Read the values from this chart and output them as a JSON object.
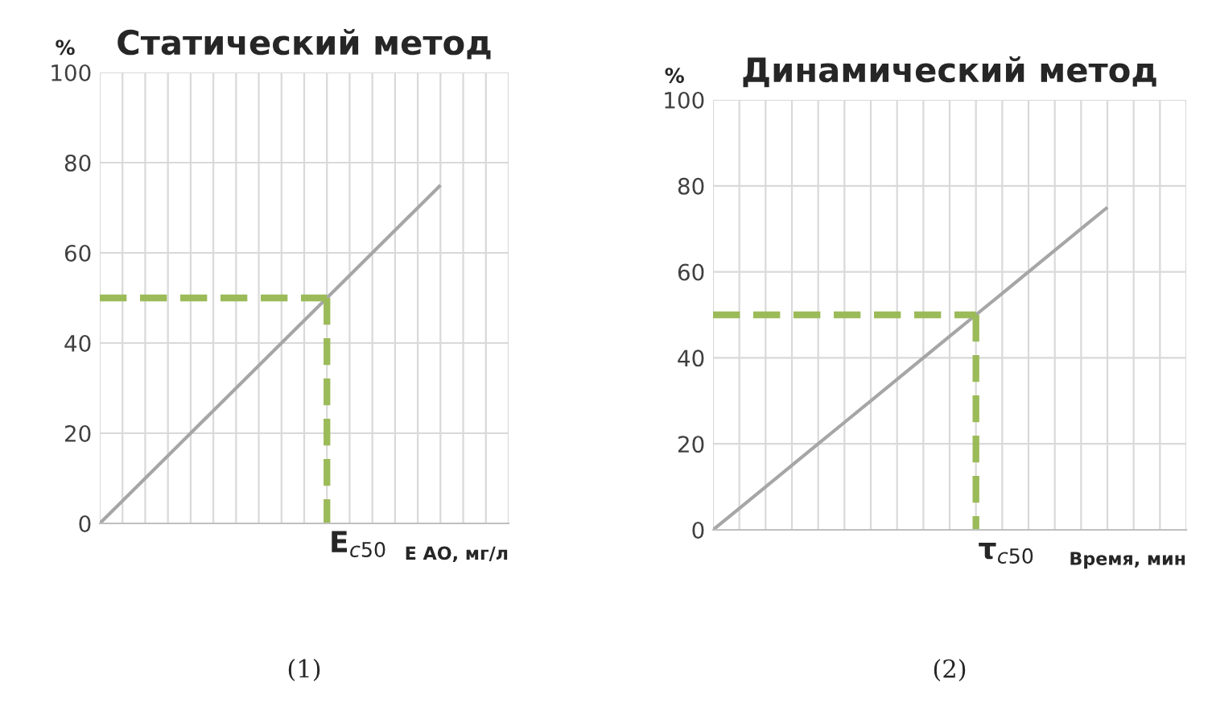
{
  "chart_data": [
    {
      "type": "line",
      "title": "Статический метод",
      "ylabel": "%",
      "xlabel": "Е АО, мг/л",
      "categories": [
        null,
        null,
        null,
        null,
        null,
        null,
        null,
        null,
        null,
        null,
        null,
        null,
        null,
        null,
        null,
        null,
        null,
        null,
        null
      ],
      "ylim": [
        0,
        100
      ],
      "yticks": [
        0,
        20,
        40,
        60,
        80,
        100
      ],
      "grid": true,
      "series": [
        {
          "color": "#a6a6a6",
          "values": [
            0,
            5,
            10,
            15,
            20,
            25,
            30,
            35,
            40,
            45,
            50,
            55,
            60,
            65,
            70,
            75,
            null,
            null,
            null
          ],
          "line_style": "solid"
        },
        {
          "color": "#9bbb59",
          "values": [
            50,
            50,
            50,
            50,
            50,
            50,
            50,
            50,
            50,
            50,
            50,
            null,
            null,
            null,
            null,
            null,
            null,
            null,
            null
          ],
          "line_style": "dashed"
        }
      ],
      "annotations": [
        "E$_{c50}$",
        "(1)"
      ]
    },
    {
      "type": "line",
      "title": "Динамический метод",
      "ylabel": "%",
      "xlabel": "Время, мин",
      "categories": [
        null,
        null,
        null,
        null,
        null,
        null,
        null,
        null,
        null,
        null,
        null,
        null,
        null,
        null,
        null,
        null,
        null,
        null,
        null
      ],
      "ylim": [
        0,
        100
      ],
      "yticks": [
        0,
        20,
        40,
        60,
        80,
        100
      ],
      "grid": true,
      "series": [
        {
          "color": "#a6a6a6",
          "values": [
            0,
            5,
            10,
            15,
            20,
            25,
            30,
            35,
            40,
            45,
            50,
            55,
            60,
            65,
            70,
            75,
            null,
            null,
            null
          ],
          "line_style": "solid"
        },
        {
          "color": "#9bbb59",
          "values": [
            50,
            50,
            50,
            50,
            50,
            50,
            50,
            50,
            50,
            50,
            50,
            null,
            null,
            null,
            null,
            null,
            null,
            null,
            null
          ],
          "line_style": "dashed"
        }
      ],
      "annotations": [
        "τ$_{c50}$",
        "(2)"
      ]
    }
  ]
}
